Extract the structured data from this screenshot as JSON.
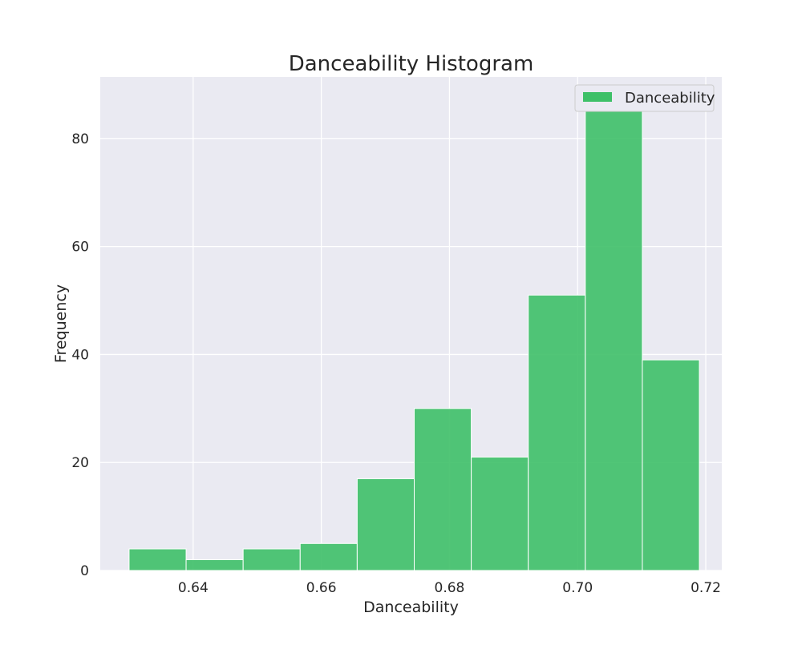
{
  "chart_data": {
    "type": "bar",
    "title": "Danceability Histogram",
    "xlabel": "Danceability",
    "ylabel": "Frequency",
    "xlim": [
      0.6255,
      0.7225
    ],
    "ylim": [
      0,
      91.4
    ],
    "xticks": [
      {
        "value": 0.64,
        "label": "0.64"
      },
      {
        "value": 0.66,
        "label": "0.66"
      },
      {
        "value": 0.68,
        "label": "0.68"
      },
      {
        "value": 0.7,
        "label": "0.70"
      },
      {
        "value": 0.72,
        "label": "0.72"
      }
    ],
    "yticks": [
      {
        "value": 0,
        "label": "0"
      },
      {
        "value": 20,
        "label": "20"
      },
      {
        "value": 40,
        "label": "40"
      },
      {
        "value": 60,
        "label": "60"
      },
      {
        "value": 80,
        "label": "80"
      }
    ],
    "bins": [
      {
        "start": 0.63,
        "end": 0.6389,
        "count": 4
      },
      {
        "start": 0.6389,
        "end": 0.6478,
        "count": 2
      },
      {
        "start": 0.6478,
        "end": 0.6567,
        "count": 4
      },
      {
        "start": 0.6567,
        "end": 0.6656,
        "count": 5
      },
      {
        "start": 0.6656,
        "end": 0.6745,
        "count": 17
      },
      {
        "start": 0.6745,
        "end": 0.6834,
        "count": 30
      },
      {
        "start": 0.6834,
        "end": 0.6923,
        "count": 21
      },
      {
        "start": 0.6923,
        "end": 0.7012,
        "count": 51
      },
      {
        "start": 0.7012,
        "end": 0.7101,
        "count": 87
      },
      {
        "start": 0.7101,
        "end": 0.719,
        "count": 39
      }
    ],
    "series": [
      {
        "name": "Danceability",
        "color": "#3ec068"
      }
    ],
    "grid": true,
    "legend": "top-right",
    "plot_background": "#eaeaf2",
    "grid_color": "#ffffff"
  }
}
